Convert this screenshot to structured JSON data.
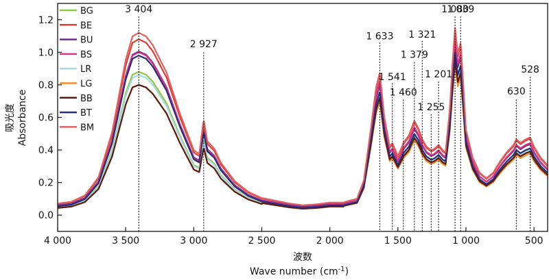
{
  "chart_data": {
    "type": "line",
    "xlabel_cn": "波数",
    "xlabel": "Wave number (cm",
    "xlabel_sup": "-1",
    "xlabel_close": ")",
    "ylabel_cn": "吸光度",
    "ylabel": "Absorbance",
    "xlim": [
      4000,
      400
    ],
    "ylim": [
      -0.1,
      1.3
    ],
    "x_ticks": [
      {
        "value": 4000,
        "label": "4 000"
      },
      {
        "value": 3500,
        "label": "3 500"
      },
      {
        "value": 3000,
        "label": "3 000"
      },
      {
        "value": 2500,
        "label": "2 500"
      },
      {
        "value": 2000,
        "label": "2 000"
      },
      {
        "value": 1500,
        "label": "1 500"
      },
      {
        "value": 1000,
        "label": "1 000"
      },
      {
        "value": 500,
        "label": "500"
      }
    ],
    "y_ticks": [
      {
        "value": 0.0,
        "label": "0.0"
      },
      {
        "value": 0.2,
        "label": "0.2"
      },
      {
        "value": 0.4,
        "label": "0.4"
      },
      {
        "value": 0.6,
        "label": "0.6"
      },
      {
        "value": 0.8,
        "label": "0.8"
      },
      {
        "value": 1.0,
        "label": "1.0"
      },
      {
        "value": 1.2,
        "label": "1.2"
      }
    ],
    "legend_position": "top-left",
    "grid": false,
    "annotations": [
      {
        "x": 3404,
        "label": "3 404",
        "label_y": 1.245,
        "line_top": 1.22
      },
      {
        "x": 2927,
        "label": "2 927",
        "label_y": 1.03,
        "line_top": 1.0
      },
      {
        "x": 1633,
        "label": "1 633",
        "label_y": 1.08,
        "line_top": 1.06
      },
      {
        "x": 1541,
        "label": "1 541",
        "label_y": 0.83,
        "line_top": 0.81
      },
      {
        "x": 1460,
        "label": "1 460",
        "label_y": 0.735,
        "line_top": 0.71
      },
      {
        "x": 1379,
        "label": "1 379",
        "label_y": 0.965,
        "line_top": 0.94
      },
      {
        "x": 1321,
        "label": "1 321",
        "label_y": 1.09,
        "line_top": 1.07
      },
      {
        "x": 1255,
        "label": "1 255",
        "label_y": 0.645,
        "line_top": 0.62
      },
      {
        "x": 1201,
        "label": "1 201",
        "label_y": 0.845,
        "line_top": 0.82
      },
      {
        "x": 1080,
        "label": "1 080",
        "label_y": 1.245,
        "line_top": 1.22
      },
      {
        "x": 1039,
        "label": "1 039",
        "label_y": 1.245,
        "line_top": 1.22
      },
      {
        "x": 630,
        "label": "630",
        "label_y": 0.74,
        "line_top": 0.71
      },
      {
        "x": 528,
        "label": "528",
        "label_y": 0.875,
        "line_top": 0.85
      }
    ],
    "base_profile": [
      [
        4000,
        0.055
      ],
      [
        3900,
        0.065
      ],
      [
        3800,
        0.1
      ],
      [
        3700,
        0.2
      ],
      [
        3600,
        0.45
      ],
      [
        3500,
        0.85
      ],
      [
        3450,
        0.98
      ],
      [
        3404,
        1.0
      ],
      [
        3350,
        0.98
      ],
      [
        3300,
        0.93
      ],
      [
        3200,
        0.78
      ],
      [
        3100,
        0.55
      ],
      [
        3000,
        0.35
      ],
      [
        2960,
        0.33
      ],
      [
        2927,
        0.52
      ],
      [
        2900,
        0.4
      ],
      [
        2850,
        0.36
      ],
      [
        2800,
        0.28
      ],
      [
        2700,
        0.18
      ],
      [
        2600,
        0.12
      ],
      [
        2500,
        0.085
      ],
      [
        2300,
        0.055
      ],
      [
        2200,
        0.045
      ],
      [
        2100,
        0.05
      ],
      [
        2000,
        0.06
      ],
      [
        1900,
        0.06
      ],
      [
        1800,
        0.08
      ],
      [
        1750,
        0.18
      ],
      [
        1700,
        0.45
      ],
      [
        1660,
        0.68
      ],
      [
        1633,
        0.76
      ],
      [
        1600,
        0.52
      ],
      [
        1560,
        0.36
      ],
      [
        1541,
        0.38
      ],
      [
        1500,
        0.31
      ],
      [
        1470,
        0.36
      ],
      [
        1460,
        0.38
      ],
      [
        1420,
        0.42
      ],
      [
        1400,
        0.46
      ],
      [
        1379,
        0.5
      ],
      [
        1350,
        0.46
      ],
      [
        1321,
        0.4
      ],
      [
        1290,
        0.36
      ],
      [
        1255,
        0.34
      ],
      [
        1230,
        0.35
      ],
      [
        1201,
        0.37
      ],
      [
        1170,
        0.34
      ],
      [
        1150,
        0.33
      ],
      [
        1120,
        0.55
      ],
      [
        1100,
        0.8
      ],
      [
        1080,
        1.0
      ],
      [
        1060,
        0.86
      ],
      [
        1039,
        0.92
      ],
      [
        1020,
        0.7
      ],
      [
        1000,
        0.45
      ],
      [
        950,
        0.3
      ],
      [
        900,
        0.22
      ],
      [
        850,
        0.19
      ],
      [
        800,
        0.22
      ],
      [
        750,
        0.28
      ],
      [
        700,
        0.33
      ],
      [
        650,
        0.37
      ],
      [
        630,
        0.4
      ],
      [
        600,
        0.38
      ],
      [
        560,
        0.4
      ],
      [
        528,
        0.41
      ],
      [
        500,
        0.36
      ],
      [
        450,
        0.3
      ],
      [
        400,
        0.26
      ]
    ],
    "series": [
      {
        "name": "BG",
        "color": "#8dc63f",
        "main_scale": 0.88,
        "low_scale": 0.97,
        "offset": 0.0
      },
      {
        "name": "BE",
        "color": "#e03c31",
        "main_scale": 1.07,
        "low_scale": 1.12,
        "offset": 0.01
      },
      {
        "name": "BU",
        "color": "#6b2c91",
        "main_scale": 1.0,
        "low_scale": 1.05,
        "offset": 0.005
      },
      {
        "name": "BS",
        "color": "#d63384",
        "main_scale": 1.0,
        "low_scale": 1.08,
        "offset": 0.0
      },
      {
        "name": "LR",
        "color": "#a8d8e8",
        "main_scale": 0.86,
        "low_scale": 0.98,
        "offset": 0.0
      },
      {
        "name": "LG",
        "color": "#f08c2a",
        "main_scale": 0.8,
        "low_scale": 0.92,
        "offset": 0.0
      },
      {
        "name": "BB",
        "color": "#5c1a0e",
        "main_scale": 0.8,
        "low_scale": 0.95,
        "offset": 0.0
      },
      {
        "name": "BT",
        "color": "#2a2a7a",
        "main_scale": 0.98,
        "low_scale": 1.0,
        "offset": 0.0
      },
      {
        "name": "BM",
        "color": "#e06060",
        "main_scale": 1.11,
        "low_scale": 1.14,
        "offset": 0.01
      }
    ]
  }
}
